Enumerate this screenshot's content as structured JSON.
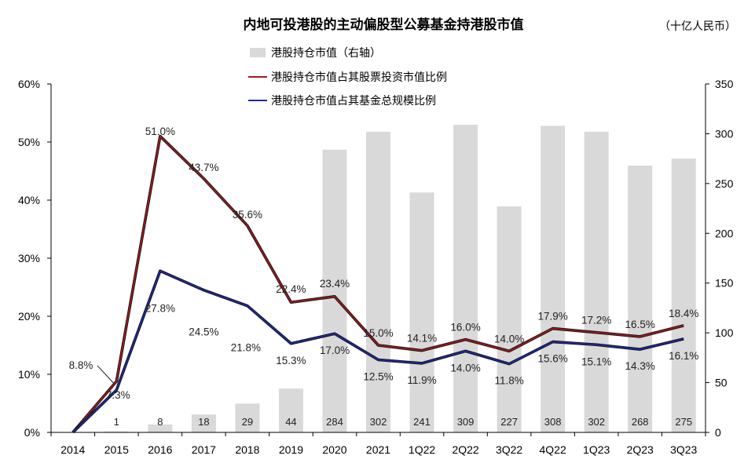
{
  "chart_data": {
    "type": "bar+line",
    "title": "内地可投港股的主动偏股型公募基金持港股市值",
    "unit_label": "（十亿人民币）",
    "categories": [
      "2014",
      "2015",
      "2016",
      "2017",
      "2018",
      "2019",
      "2020",
      "2021",
      "1Q22",
      "2Q22",
      "3Q22",
      "4Q22",
      "1Q23",
      "2Q23",
      "3Q23"
    ],
    "left_axis": {
      "min": 0,
      "max": 60,
      "ticks": [
        "0%",
        "10%",
        "20%",
        "30%",
        "40%",
        "50%",
        "60%"
      ]
    },
    "right_axis": {
      "min": 0,
      "max": 350,
      "ticks": [
        "0",
        "50",
        "100",
        "150",
        "200",
        "250",
        "300",
        "350"
      ]
    },
    "bar_series": {
      "name": "港股持仓市值（右轴）",
      "color": "#d9d9d9",
      "values": [
        0,
        1,
        8,
        18,
        29,
        44,
        284,
        302,
        241,
        309,
        227,
        308,
        302,
        268,
        275
      ],
      "labels": [
        "",
        "1",
        "8",
        "18",
        "29",
        "44",
        "284",
        "302",
        "241",
        "309",
        "227",
        "308",
        "302",
        "268",
        "275"
      ]
    },
    "line_series": [
      {
        "name": "港股持仓市值占其股票投资市值比例",
        "color": "#a01c1c",
        "values": [
          0,
          8.8,
          51.0,
          43.7,
          35.6,
          22.4,
          23.4,
          15.0,
          14.1,
          16.0,
          14.0,
          17.9,
          17.2,
          16.5,
          18.4
        ],
        "labels": [
          "",
          "8.8%",
          "51.0%",
          "43.7%",
          "35.6%",
          "22.4%",
          "23.4%",
          "15.0%",
          "14.1%",
          "16.0%",
          "14.0%",
          "17.9%",
          "17.2%",
          "16.5%",
          "18.4%"
        ]
      },
      {
        "name": "港股持仓市值占其基金总规模比例",
        "color": "#1f2a9e",
        "values": [
          0,
          7.3,
          27.8,
          24.5,
          21.8,
          15.3,
          17.0,
          12.5,
          11.9,
          14.0,
          11.8,
          15.6,
          15.1,
          14.3,
          16.1
        ],
        "labels": [
          "",
          "7.3%",
          "27.8%",
          "24.5%",
          "21.8%",
          "15.3%",
          "17.0%",
          "12.5%",
          "11.9%",
          "14.0%",
          "11.8%",
          "15.6%",
          "15.1%",
          "14.3%",
          "16.1%"
        ]
      }
    ],
    "legend_position": "top-center",
    "grid": false
  }
}
